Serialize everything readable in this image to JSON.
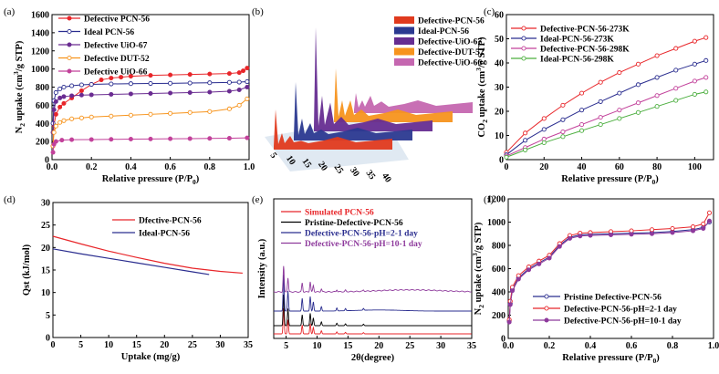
{
  "chart_data": [
    {
      "panel_label": "(a)",
      "type": "line",
      "xlabel": "Relative pressure (P/P",
      "xlabel_sub": "0",
      "xlabel_tail": ")",
      "ylabel": "N",
      "ylabel_sub": "2",
      "ylabel_tail": " uptake (cm",
      "ylabel_sup": "3",
      "ylabel_end": "/g STP)",
      "xlim": [
        0,
        1.0
      ],
      "ylim": [
        0,
        1600
      ],
      "xticks": [
        "0.0",
        "0.2",
        "0.4",
        "0.6",
        "0.8",
        "1.0"
      ],
      "yticks": [
        "0",
        "200",
        "400",
        "600",
        "800",
        "1000",
        "1200",
        "1400",
        "1600"
      ],
      "legend_position": "top-left",
      "series": [
        {
          "name": "Defective PCN-56",
          "color": "#e8262a",
          "marker": "filled-circle",
          "x": [
            0.005,
            0.01,
            0.02,
            0.04,
            0.06,
            0.1,
            0.15,
            0.2,
            0.25,
            0.3,
            0.35,
            0.4,
            0.5,
            0.6,
            0.7,
            0.8,
            0.9,
            0.95,
            0.97,
            0.99
          ],
          "values": [
            150,
            380,
            500,
            580,
            620,
            680,
            760,
            830,
            880,
            900,
            910,
            920,
            930,
            935,
            940,
            945,
            950,
            960,
            980,
            1010
          ]
        },
        {
          "name": "Ideal PCN-56",
          "color": "#2a2d8f",
          "marker": "open-circle",
          "x": [
            0.005,
            0.01,
            0.02,
            0.04,
            0.06,
            0.1,
            0.15,
            0.2,
            0.3,
            0.4,
            0.5,
            0.6,
            0.7,
            0.8,
            0.9,
            0.95,
            0.99
          ],
          "values": [
            400,
            650,
            740,
            780,
            800,
            815,
            825,
            830,
            835,
            838,
            840,
            842,
            845,
            848,
            852,
            855,
            860
          ]
        },
        {
          "name": "Defective UiO-67",
          "color": "#6a2c91",
          "marker": "filled-circle",
          "x": [
            0.005,
            0.01,
            0.02,
            0.04,
            0.06,
            0.1,
            0.15,
            0.2,
            0.3,
            0.4,
            0.5,
            0.6,
            0.7,
            0.8,
            0.9,
            0.95,
            0.99
          ],
          "values": [
            300,
            550,
            640,
            680,
            695,
            705,
            712,
            715,
            720,
            725,
            730,
            735,
            740,
            745,
            755,
            770,
            800
          ]
        },
        {
          "name": "Defective DUT-52",
          "color": "#f7941d",
          "marker": "open-circle",
          "x": [
            0.005,
            0.01,
            0.02,
            0.04,
            0.06,
            0.1,
            0.15,
            0.2,
            0.3,
            0.4,
            0.5,
            0.6,
            0.7,
            0.8,
            0.9,
            0.95,
            0.99
          ],
          "values": [
            150,
            300,
            370,
            410,
            430,
            450,
            460,
            470,
            480,
            490,
            500,
            510,
            520,
            530,
            560,
            600,
            670
          ]
        },
        {
          "name": "Defective UiO-66",
          "color": "#c2419a",
          "marker": "filled-circle",
          "x": [
            0.005,
            0.01,
            0.02,
            0.05,
            0.1,
            0.2,
            0.3,
            0.4,
            0.5,
            0.6,
            0.7,
            0.8,
            0.9,
            0.99
          ],
          "values": [
            80,
            170,
            200,
            215,
            220,
            222,
            224,
            226,
            228,
            230,
            232,
            234,
            236,
            240
          ]
        }
      ]
    },
    {
      "panel_label": "(b)",
      "type": "line",
      "xticks": [
        "5",
        "10",
        "15",
        "20",
        "25",
        "30",
        "35",
        "40"
      ],
      "legend_position": "top-right",
      "series": [
        {
          "name": "Defective-PCN-56",
          "color": "#e03a1e"
        },
        {
          "name": "Ideal-PCN-56",
          "color": "#2b3990"
        },
        {
          "name": "Defective-UiO-67",
          "color": "#662d91"
        },
        {
          "name": "Defective-DUT-52",
          "color": "#f7941d"
        },
        {
          "name": "Defective-UiO-66",
          "color": "#c567b0"
        }
      ]
    },
    {
      "panel_label": "(c)",
      "type": "line",
      "xlabel": "Relative pressure (P/P",
      "xlabel_sub": "0",
      "xlabel_tail": ")",
      "ylabel": "CO",
      "ylabel_sub": "2",
      "ylabel_tail": " uptake (cm",
      "ylabel_sup": "3",
      "ylabel_end": "/g STP)",
      "xlim": [
        0,
        110
      ],
      "ylim": [
        0,
        60
      ],
      "xticks": [
        "0",
        "20",
        "40",
        "60",
        "80",
        "100"
      ],
      "yticks": [
        "0",
        "10",
        "20",
        "30",
        "40",
        "50",
        "60"
      ],
      "legend_position": "top-left",
      "series": [
        {
          "name": "Defective-PCN-56-273K",
          "color": "#e8262a",
          "marker": "open-circle",
          "x": [
            0,
            10,
            20,
            30,
            40,
            50,
            60,
            70,
            80,
            90,
            100,
            106
          ],
          "values": [
            3,
            11,
            17,
            22.5,
            27.5,
            32,
            36,
            39.5,
            43,
            46,
            49,
            50.5
          ]
        },
        {
          "name": "Ideal-PCN-56-273K",
          "color": "#2a2d8f",
          "marker": "open-circle",
          "x": [
            0,
            10,
            20,
            30,
            40,
            50,
            60,
            70,
            80,
            90,
            100,
            106
          ],
          "values": [
            2,
            8,
            12.5,
            16.5,
            20.5,
            24,
            27.5,
            31,
            34,
            37,
            39.5,
            41
          ]
        },
        {
          "name": "Defective-PCN-56-298K",
          "color": "#c2419a",
          "marker": "open-circle",
          "x": [
            0,
            10,
            20,
            30,
            40,
            50,
            60,
            70,
            80,
            90,
            100,
            106
          ],
          "values": [
            1.5,
            5,
            8.5,
            11.5,
            14.5,
            17.5,
            20.5,
            23.5,
            26.5,
            29.5,
            32.5,
            34
          ]
        },
        {
          "name": "Ideal-PCN-56-298K",
          "color": "#4caf3f",
          "marker": "open-circle",
          "x": [
            0,
            10,
            20,
            30,
            40,
            50,
            60,
            70,
            80,
            90,
            100,
            106
          ],
          "values": [
            1,
            4,
            7,
            9.5,
            12,
            14.5,
            17,
            19.5,
            22,
            24.5,
            27,
            28
          ]
        }
      ]
    },
    {
      "panel_label": "(d)",
      "type": "line",
      "xlabel": "Uptake (mg/g)",
      "ylabel": "Qst (kJ/mol)",
      "xlim": [
        0,
        35
      ],
      "ylim": [
        0,
        30
      ],
      "xticks": [
        "0",
        "5",
        "10",
        "15",
        "20",
        "25",
        "30",
        "35"
      ],
      "yticks": [
        "0",
        "5",
        "10",
        "15",
        "20",
        "25",
        "30"
      ],
      "legend_position": "top-right",
      "series": [
        {
          "name": "Dfective-PCN-56",
          "color": "#e8262a",
          "x": [
            0,
            5,
            10,
            15,
            20,
            25,
            30,
            34
          ],
          "values": [
            22.5,
            20.8,
            19.2,
            17.8,
            16.5,
            15.4,
            14.7,
            14.3
          ]
        },
        {
          "name": "Ideal-PCN-56",
          "color": "#2a2d8f",
          "x": [
            0,
            5,
            10,
            15,
            20,
            25,
            28
          ],
          "values": [
            19.7,
            18.6,
            17.6,
            16.6,
            15.6,
            14.6,
            14.0
          ]
        }
      ]
    },
    {
      "panel_label": "(e)",
      "type": "line",
      "xlabel": "2θ(degree)",
      "ylabel": "Intensity (a.u.)",
      "xlim": [
        3,
        35
      ],
      "xticks": [
        "5",
        "10",
        "15",
        "20",
        "25",
        "30",
        "35"
      ],
      "legend_position": "top-left",
      "series": [
        {
          "name": "Simulated PCN-56",
          "color": "#e8262a"
        },
        {
          "name": "Pristine-Defective-PCN-56",
          "color": "#000000"
        },
        {
          "name": "Defective-PCN-56-pH=2-1 day",
          "color": "#2a2d8f"
        },
        {
          "name": "Defective-PCN-56-pH=10-1 day",
          "color": "#8e3a9c"
        }
      ]
    },
    {
      "panel_label": "(f)",
      "type": "line",
      "xlabel": "Relative pressure (P/P",
      "xlabel_sub": "0",
      "xlabel_tail": ")",
      "ylabel": "N",
      "ylabel_sub": "2",
      "ylabel_tail": " uptake (cm",
      "ylabel_sup": "3",
      "ylabel_end": "/g STP)",
      "xlim": [
        0,
        1.0
      ],
      "ylim": [
        0,
        1200
      ],
      "xticks": [
        "0.0",
        "0.2",
        "0.4",
        "0.6",
        "0.8",
        "1.0"
      ],
      "yticks": [
        "0",
        "200",
        "400",
        "600",
        "800",
        "1000",
        "1200"
      ],
      "legend_position": "bottom-right",
      "series": [
        {
          "name": "Pristine Defective-PCN-56",
          "color": "#2a2d8f",
          "marker": "open-circle",
          "x": [
            0.005,
            0.01,
            0.02,
            0.05,
            0.1,
            0.15,
            0.2,
            0.25,
            0.3,
            0.35,
            0.4,
            0.5,
            0.6,
            0.7,
            0.8,
            0.9,
            0.95,
            0.98
          ],
          "values": [
            150,
            300,
            420,
            520,
            600,
            650,
            700,
            800,
            870,
            890,
            895,
            900,
            905,
            910,
            920,
            935,
            955,
            1000
          ]
        },
        {
          "name": "Defective-PCN-56-pH=2-1 day",
          "color": "#e8262a",
          "marker": "open-circle",
          "x": [
            0.005,
            0.01,
            0.02,
            0.05,
            0.1,
            0.15,
            0.2,
            0.25,
            0.3,
            0.35,
            0.4,
            0.5,
            0.6,
            0.7,
            0.8,
            0.9,
            0.95,
            0.98
          ],
          "values": [
            160,
            320,
            440,
            540,
            615,
            665,
            715,
            815,
            885,
            905,
            910,
            918,
            925,
            935,
            945,
            960,
            985,
            1080
          ]
        },
        {
          "name": "Defective-PCN-56-pH=10-1 day",
          "color": "#8e3a9c",
          "marker": "filled-circle",
          "x": [
            0.005,
            0.01,
            0.02,
            0.05,
            0.1,
            0.15,
            0.2,
            0.25,
            0.3,
            0.35,
            0.4,
            0.5,
            0.6,
            0.7,
            0.8,
            0.9,
            0.95,
            0.98
          ],
          "values": [
            140,
            290,
            410,
            510,
            590,
            640,
            690,
            790,
            860,
            880,
            885,
            890,
            895,
            900,
            910,
            925,
            945,
            1010
          ]
        }
      ]
    }
  ]
}
